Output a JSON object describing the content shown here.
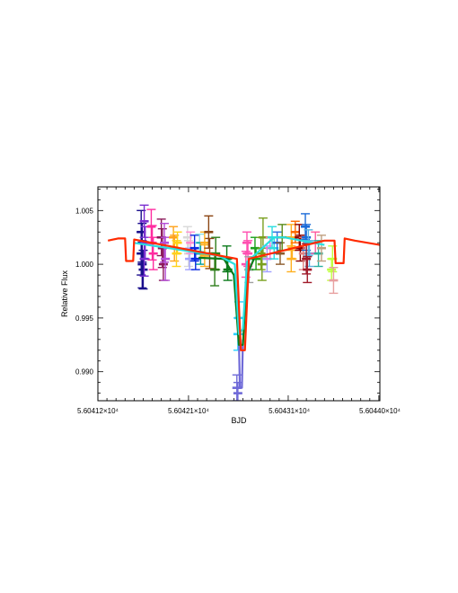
{
  "chart_data": {
    "type": "scatter",
    "xlabel": "BJD",
    "ylabel": "Relative Flux",
    "xlim": [
      56041.2,
      56044.0
    ],
    "ylim": [
      0.9873,
      1.0072
    ],
    "x_ticks": [
      {
        "value": 56041.2,
        "label": "5.60412×10⁴"
      },
      {
        "value": 56042.1,
        "label": "5.60421×10⁴"
      },
      {
        "value": 56043.1,
        "label": "5.60431×10⁴"
      },
      {
        "value": 56044.0,
        "label": "5.60440×10⁴"
      }
    ],
    "y_ticks": [
      {
        "value": 0.99,
        "label": "0.990"
      },
      {
        "value": 0.995,
        "label": "0.995"
      },
      {
        "value": 1.0,
        "label": "1.000"
      },
      {
        "value": 1.005,
        "label": "1.005"
      }
    ],
    "series": [
      {
        "color": "#1a0f8c",
        "points": [
          [
            56041.63,
            1.003,
            0.002
          ],
          [
            56041.63,
            1.001,
            0.002
          ],
          [
            56041.64,
            1.0,
            0.0022
          ],
          [
            56041.64,
            1.002,
            0.0018
          ],
          [
            56041.65,
            0.9995,
            0.0018
          ]
        ]
      },
      {
        "color": "#7a2fd0",
        "points": [
          [
            56041.66,
            1.004,
            0.0015
          ],
          [
            56041.67,
            1.002,
            0.0015
          ],
          [
            56041.66,
            1.0005,
            0.0016
          ]
        ]
      },
      {
        "color": "#ff2ca0",
        "points": [
          [
            56041.73,
            1.0035,
            0.0016
          ],
          [
            56041.74,
            1.002,
            0.0016
          ],
          [
            56041.75,
            1.001,
            0.0015
          ]
        ]
      },
      {
        "color": "#8b1a5a",
        "points": [
          [
            56041.83,
            1.0025,
            0.0017
          ],
          [
            56041.84,
            1.0015,
            0.0018
          ],
          [
            56041.85,
            1.0,
            0.0015
          ]
        ]
      },
      {
        "color": "#b44fd6",
        "points": [
          [
            56041.86,
            1.002,
            0.0018
          ],
          [
            56041.87,
            1.0005,
            0.002
          ]
        ]
      },
      {
        "color": "#ffa21a",
        "points": [
          [
            56041.95,
            1.0025,
            0.001
          ],
          [
            56041.96,
            1.0015,
            0.0012
          ]
        ]
      },
      {
        "color": "#ffd21a",
        "points": [
          [
            56041.98,
            1.001,
            0.0012
          ],
          [
            56041.99,
            1.002,
            0.001
          ]
        ]
      },
      {
        "color": "#d8d8d8",
        "points": [
          [
            56042.09,
            1.0025,
            0.001
          ],
          [
            56042.1,
            1.001,
            0.0012
          ]
        ]
      },
      {
        "color": "#a0a0ff",
        "points": [
          [
            56042.11,
            1.0005,
            0.001
          ]
        ]
      },
      {
        "color": "#ff8fd0",
        "points": [
          [
            56042.12,
            1.002,
            0.001
          ]
        ]
      },
      {
        "color": "#0a2ae0",
        "points": [
          [
            56042.16,
            1.0015,
            0.0012
          ],
          [
            56042.17,
            1.0005,
            0.001
          ]
        ]
      },
      {
        "color": "#8de0e6",
        "points": [
          [
            56042.21,
            1.002,
            0.0008
          ]
        ]
      },
      {
        "color": "#00a0a0",
        "points": [
          [
            56042.22,
            1.001,
            0.001
          ]
        ]
      },
      {
        "color": "#ffb020",
        "points": [
          [
            56042.26,
            1.002,
            0.001
          ],
          [
            56042.26,
            1.0008,
            0.001
          ]
        ]
      },
      {
        "color": "#8b4513",
        "points": [
          [
            56042.3,
            1.003,
            0.0015
          ],
          [
            56042.31,
            1.001,
            0.0014
          ]
        ]
      },
      {
        "color": "#2e7d1a",
        "points": [
          [
            56042.36,
            0.9995,
            0.0015
          ],
          [
            56042.37,
            1.001,
            0.0015
          ]
        ]
      },
      {
        "color": "#0b7a1a",
        "points": [
          [
            56042.48,
            1.0005,
            0.0012
          ],
          [
            56042.49,
            0.9995,
            0.001
          ]
        ]
      },
      {
        "color": "#2ad0ff",
        "points": [
          [
            56042.59,
            0.9935,
            0.0015
          ],
          [
            56042.6,
            0.995,
            0.0015
          ]
        ]
      },
      {
        "color": "#6f6ad8",
        "points": [
          [
            56042.58,
            0.9885,
            0.0012
          ],
          [
            56042.59,
            0.988,
            0.001
          ]
        ]
      },
      {
        "color": "#ff4fb0",
        "points": [
          [
            56042.68,
            1.002,
            0.001
          ],
          [
            56042.69,
            1.001,
            0.0012
          ],
          [
            56042.67,
            1.0,
            0.0012
          ]
        ]
      },
      {
        "color": "#a0a0a0",
        "points": [
          [
            56042.7,
            0.9995,
            0.0012
          ]
        ]
      },
      {
        "color": "#1aa01a",
        "points": [
          [
            56042.76,
            1.0015,
            0.001
          ],
          [
            56042.77,
            1.0005,
            0.001
          ]
        ]
      },
      {
        "color": "#7aa020",
        "points": [
          [
            56042.82,
            1.001,
            0.0015
          ],
          [
            56042.83,
            1.0,
            0.0015
          ],
          [
            56042.84,
            1.0025,
            0.0018
          ]
        ]
      },
      {
        "color": "#a0a0ff",
        "points": [
          [
            56042.88,
            1.0005,
            0.0012
          ]
        ]
      },
      {
        "color": "#ff6fd0",
        "points": [
          [
            56042.91,
            1.0015,
            0.001
          ]
        ]
      },
      {
        "color": "#2adfe0",
        "points": [
          [
            56042.93,
            1.0025,
            0.001
          ],
          [
            56042.95,
            1.0015,
            0.001
          ]
        ]
      },
      {
        "color": "#2a6fe0",
        "points": [
          [
            56042.98,
            1.002,
            0.001
          ]
        ]
      },
      {
        "color": "#8b5a2b",
        "points": [
          [
            56043.01,
            1.001,
            0.001
          ]
        ]
      },
      {
        "color": "#5a8b1a",
        "points": [
          [
            56043.03,
            1.0025,
            0.0012
          ]
        ]
      },
      {
        "color": "#ffb020",
        "points": [
          [
            56043.12,
            1.0025,
            0.0012
          ],
          [
            56043.13,
            1.0015,
            0.001
          ],
          [
            56043.12,
            1.0005,
            0.0012
          ]
        ]
      },
      {
        "color": "#ff6a00",
        "points": [
          [
            56043.16,
            1.003,
            0.001
          ]
        ]
      },
      {
        "color": "#8b0000",
        "points": [
          [
            56043.2,
            1.0025,
            0.0012
          ],
          [
            56043.21,
            1.0015,
            0.0012
          ]
        ]
      },
      {
        "color": "#e08080",
        "points": [
          [
            56043.24,
            1.001,
            0.0015
          ]
        ]
      },
      {
        "color": "#1a6ad8",
        "points": [
          [
            56043.26,
            1.0035,
            0.0012
          ],
          [
            56043.27,
            1.0025,
            0.0012
          ]
        ]
      },
      {
        "color": "#5ab0e0",
        "points": [
          [
            56043.29,
            1.002,
            0.0012
          ],
          [
            56043.3,
            1.001,
            0.0012
          ]
        ]
      },
      {
        "color": "#a01a2a",
        "points": [
          [
            56043.27,
            1.0005,
            0.0014
          ],
          [
            56043.28,
            0.9995,
            0.0012
          ]
        ]
      },
      {
        "color": "#ff5aa0",
        "points": [
          [
            56043.36,
            1.002,
            0.001
          ]
        ]
      },
      {
        "color": "#2ab0a0",
        "points": [
          [
            56043.39,
            1.001,
            0.0012
          ]
        ]
      },
      {
        "color": "#c0a080",
        "points": [
          [
            56043.42,
            1.0015,
            0.0012
          ]
        ]
      },
      {
        "color": "#c0ff40",
        "points": [
          [
            56043.52,
            0.9995,
            0.001
          ],
          [
            56043.53,
            1.0005,
            0.0012
          ]
        ]
      },
      {
        "color": "#e8a0a0",
        "points": [
          [
            56043.54,
            0.9985,
            0.0012
          ]
        ]
      }
    ],
    "models": [
      {
        "color": "#ff2a00",
        "points": [
          [
            56041.3,
            1.0022
          ],
          [
            56041.4,
            1.0024
          ],
          [
            56041.47,
            1.0024
          ],
          [
            56041.48,
            1.0003
          ],
          [
            56041.55,
            1.0003
          ],
          [
            56041.56,
            1.0023
          ],
          [
            56042.58,
            1.0005
          ],
          [
            56042.62,
            0.992
          ],
          [
            56042.66,
            0.992
          ],
          [
            56042.7,
            1.0005
          ],
          [
            56043.45,
            1.0022
          ],
          [
            56043.55,
            1.0022
          ],
          [
            56043.56,
            1.0001
          ],
          [
            56043.64,
            1.0001
          ],
          [
            56043.65,
            1.0024
          ],
          [
            56043.75,
            1.0022
          ],
          [
            56044.0,
            1.0018
          ]
        ]
      },
      {
        "color": "#2adfe0",
        "points": [
          [
            56041.55,
            1.002
          ],
          [
            56042.4,
            1.0008
          ],
          [
            56042.56,
            1.0
          ],
          [
            56042.6,
            0.9935
          ],
          [
            56042.64,
            0.994
          ],
          [
            56042.68,
            1.0002
          ],
          [
            56042.95,
            1.0025
          ],
          [
            56043.05,
            1.0025
          ],
          [
            56043.45,
            1.0018
          ]
        ]
      },
      {
        "color": "#0b7a1a",
        "points": [
          [
            56042.2,
            1.0006
          ],
          [
            56042.45,
            1.0005
          ],
          [
            56042.55,
            0.999
          ],
          [
            56042.6,
            0.9925
          ],
          [
            56042.64,
            0.9925
          ],
          [
            56042.68,
            0.999
          ],
          [
            56042.75,
            1.0005
          ]
        ]
      },
      {
        "color": "#6f6ad8",
        "points": [
          [
            56042.6,
            0.993
          ],
          [
            56042.61,
            0.9885
          ],
          [
            56042.63,
            0.9885
          ],
          [
            56042.64,
            0.993
          ]
        ]
      }
    ]
  }
}
